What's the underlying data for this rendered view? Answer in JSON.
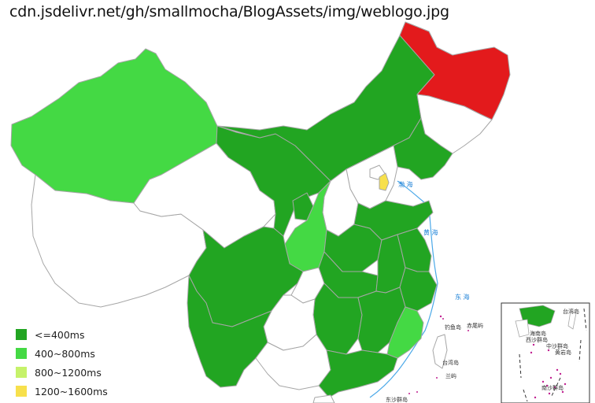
{
  "header": {
    "url": "cdn.jsdelivr.net/gh/smallmocha/BlogAssets/img/weblogo.jpg"
  },
  "colors": {
    "dark_green": "#22a522",
    "bright_green": "#44d944",
    "lime": "#c6f26a",
    "yellow": "#f7e04c",
    "red": "#e31a1c",
    "white": "#ffffff",
    "border": "#a6a6a6",
    "sea_blue": "#1a7fd6"
  },
  "legend": [
    {
      "label": "<=400ms",
      "color": "#22a522"
    },
    {
      "label": "400~800ms",
      "color": "#44d944"
    },
    {
      "label": "800~1200ms",
      "color": "#c6f26a"
    },
    {
      "label": "1200~1600ms",
      "color": "#f7e04c"
    }
  ],
  "regions": [
    {
      "name": "Xinjiang",
      "level": "400~800ms"
    },
    {
      "name": "Tibet",
      "level": "none"
    },
    {
      "name": "Qinghai",
      "level": "none"
    },
    {
      "name": "Gansu",
      "level": "<=400ms"
    },
    {
      "name": "Inner Mongolia",
      "level": "<=400ms"
    },
    {
      "name": "Heilongjiang",
      "level": "slow"
    },
    {
      "name": "Jilin",
      "level": "none"
    },
    {
      "name": "Liaoning",
      "level": "<=400ms"
    },
    {
      "name": "Beijing",
      "level": "none"
    },
    {
      "name": "Tianjin",
      "level": "1200~1600ms"
    },
    {
      "name": "Hebei",
      "level": "none"
    },
    {
      "name": "Shanxi",
      "level": "none"
    },
    {
      "name": "Shaanxi",
      "level": "400~800ms"
    },
    {
      "name": "Ningxia",
      "level": "<=400ms"
    },
    {
      "name": "Sichuan",
      "level": "<=400ms"
    },
    {
      "name": "Chongqing",
      "level": "none"
    },
    {
      "name": "Yunnan",
      "level": "<=400ms"
    },
    {
      "name": "Guizhou",
      "level": "none"
    },
    {
      "name": "Guangxi",
      "level": "none"
    },
    {
      "name": "Guangdong",
      "level": "<=400ms"
    },
    {
      "name": "Hunan",
      "level": "<=400ms"
    },
    {
      "name": "Hubei",
      "level": "<=400ms"
    },
    {
      "name": "Henan",
      "level": "<=400ms"
    },
    {
      "name": "Shandong",
      "level": "<=400ms"
    },
    {
      "name": "Anhui",
      "level": "<=400ms"
    },
    {
      "name": "Jiangsu",
      "level": "<=400ms"
    },
    {
      "name": "Zhejiang",
      "level": "<=400ms"
    },
    {
      "name": "Jiangxi",
      "level": "<=400ms"
    },
    {
      "name": "Fujian",
      "level": "400~800ms"
    },
    {
      "name": "Taiwan",
      "level": "none"
    },
    {
      "name": "Hainan",
      "level": "none"
    }
  ],
  "labels": {
    "bohai": "渤 海",
    "huanghai": "黄 海",
    "donghai": "东 海",
    "diaoyu": "钓鱼岛",
    "chiwei": "赤尾屿",
    "taiwan": "台湾岛",
    "lanyu": "兰屿",
    "dongsha": "东沙群岛",
    "inset_taiwan": "台湾岛",
    "nansha": "南沙群岛",
    "xisha": "西沙群岛",
    "zhongsha": "中沙群岛",
    "huangyan": "黄岩岛",
    "hainan_inset": "海南岛"
  }
}
